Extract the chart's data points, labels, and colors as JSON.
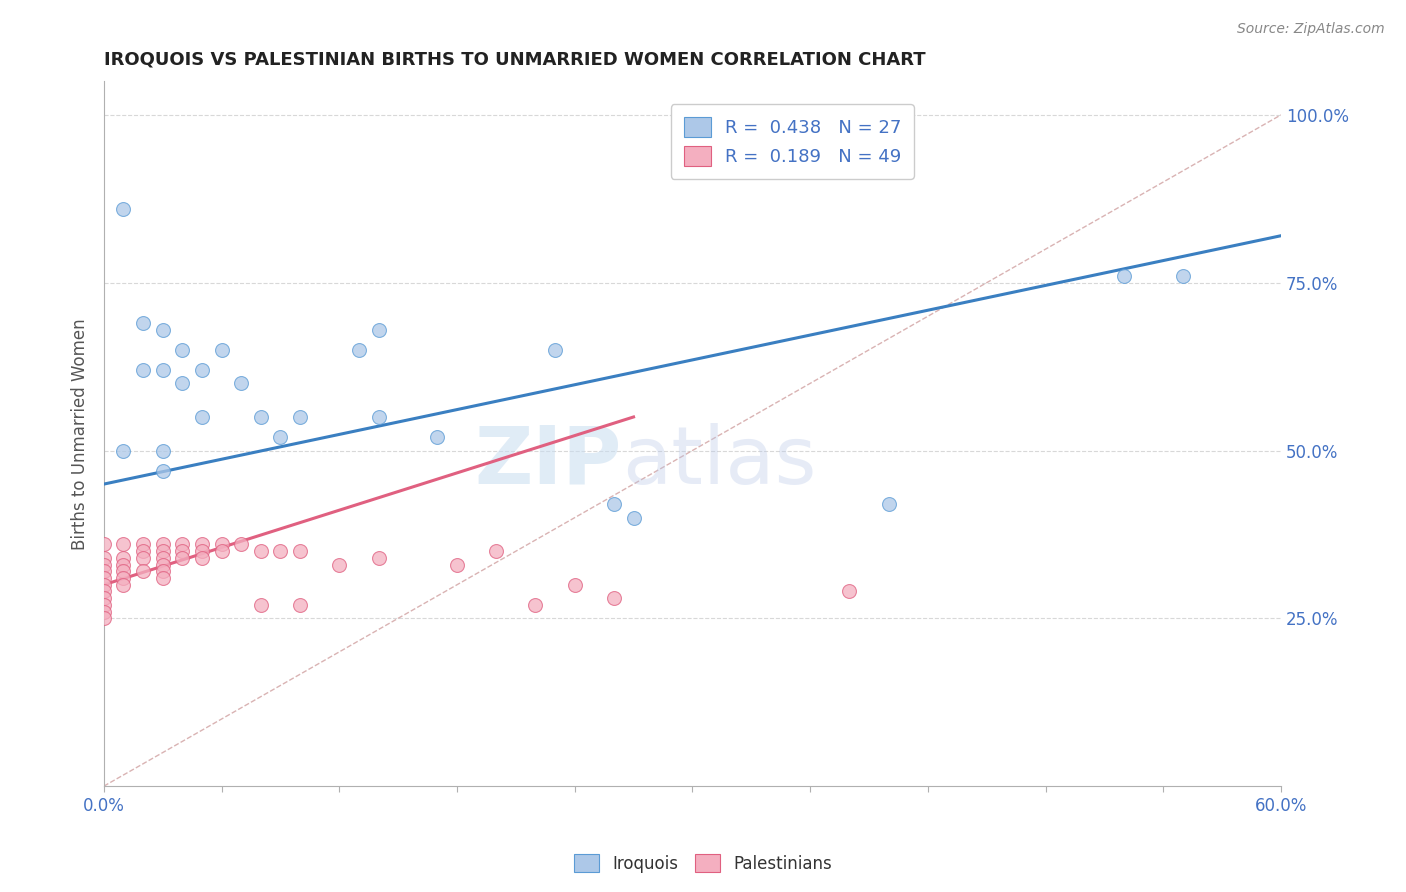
{
  "title": "IROQUOIS VS PALESTINIAN BIRTHS TO UNMARRIED WOMEN CORRELATION CHART",
  "source": "Source: ZipAtlas.com",
  "ylabel": "Births to Unmarried Women",
  "watermark_zip": "ZIP",
  "watermark_atlas": "atlas",
  "legend_iroquois": {
    "R": 0.438,
    "N": 27,
    "color": "#adc8e8"
  },
  "legend_palestinians": {
    "R": 0.189,
    "N": 49,
    "color": "#f4afc0"
  },
  "iroquois_color": "#adc8e8",
  "iroquois_edge_color": "#5b9bd5",
  "iroquois_line_color": "#3a7fc1",
  "palestinians_color": "#f4afc0",
  "palestinians_edge_color": "#e06080",
  "palestinians_line_color": "#e06080",
  "diagonal_color": "#d0a0a0",
  "grid_color": "#d8d8d8",
  "xlim": [
    0.0,
    0.6
  ],
  "ylim": [
    0.0,
    1.05
  ],
  "iroquois_x": [
    0.01,
    0.02,
    0.02,
    0.03,
    0.03,
    0.04,
    0.04,
    0.05,
    0.05,
    0.06,
    0.07,
    0.08,
    0.09,
    0.1,
    0.13,
    0.14,
    0.14,
    0.17,
    0.23,
    0.26,
    0.27,
    0.4,
    0.52,
    0.55,
    0.01,
    0.03,
    0.03
  ],
  "iroquois_y": [
    0.86,
    0.69,
    0.62,
    0.68,
    0.62,
    0.65,
    0.6,
    0.62,
    0.55,
    0.65,
    0.6,
    0.55,
    0.52,
    0.55,
    0.65,
    0.68,
    0.55,
    0.52,
    0.65,
    0.42,
    0.4,
    0.42,
    0.76,
    0.76,
    0.5,
    0.47,
    0.5
  ],
  "palestinians_x": [
    0.0,
    0.0,
    0.0,
    0.0,
    0.0,
    0.0,
    0.0,
    0.0,
    0.0,
    0.0,
    0.0,
    0.01,
    0.01,
    0.01,
    0.01,
    0.01,
    0.01,
    0.02,
    0.02,
    0.02,
    0.02,
    0.03,
    0.03,
    0.03,
    0.03,
    0.03,
    0.03,
    0.04,
    0.04,
    0.04,
    0.05,
    0.05,
    0.05,
    0.06,
    0.06,
    0.07,
    0.08,
    0.08,
    0.09,
    0.1,
    0.1,
    0.12,
    0.14,
    0.18,
    0.2,
    0.22,
    0.24,
    0.26,
    0.38
  ],
  "palestinians_y": [
    0.36,
    0.34,
    0.33,
    0.32,
    0.31,
    0.3,
    0.29,
    0.28,
    0.27,
    0.26,
    0.25,
    0.36,
    0.34,
    0.33,
    0.32,
    0.31,
    0.3,
    0.36,
    0.35,
    0.34,
    0.32,
    0.36,
    0.35,
    0.34,
    0.33,
    0.32,
    0.31,
    0.36,
    0.35,
    0.34,
    0.36,
    0.35,
    0.34,
    0.36,
    0.35,
    0.36,
    0.35,
    0.27,
    0.35,
    0.35,
    0.27,
    0.33,
    0.34,
    0.33,
    0.35,
    0.27,
    0.3,
    0.28,
    0.29
  ],
  "iroquois_trend_x": [
    0.0,
    0.6
  ],
  "iroquois_trend_y": [
    0.45,
    0.82
  ],
  "palestinians_trend_x": [
    0.0,
    0.27
  ],
  "palestinians_trend_y": [
    0.3,
    0.55
  ]
}
